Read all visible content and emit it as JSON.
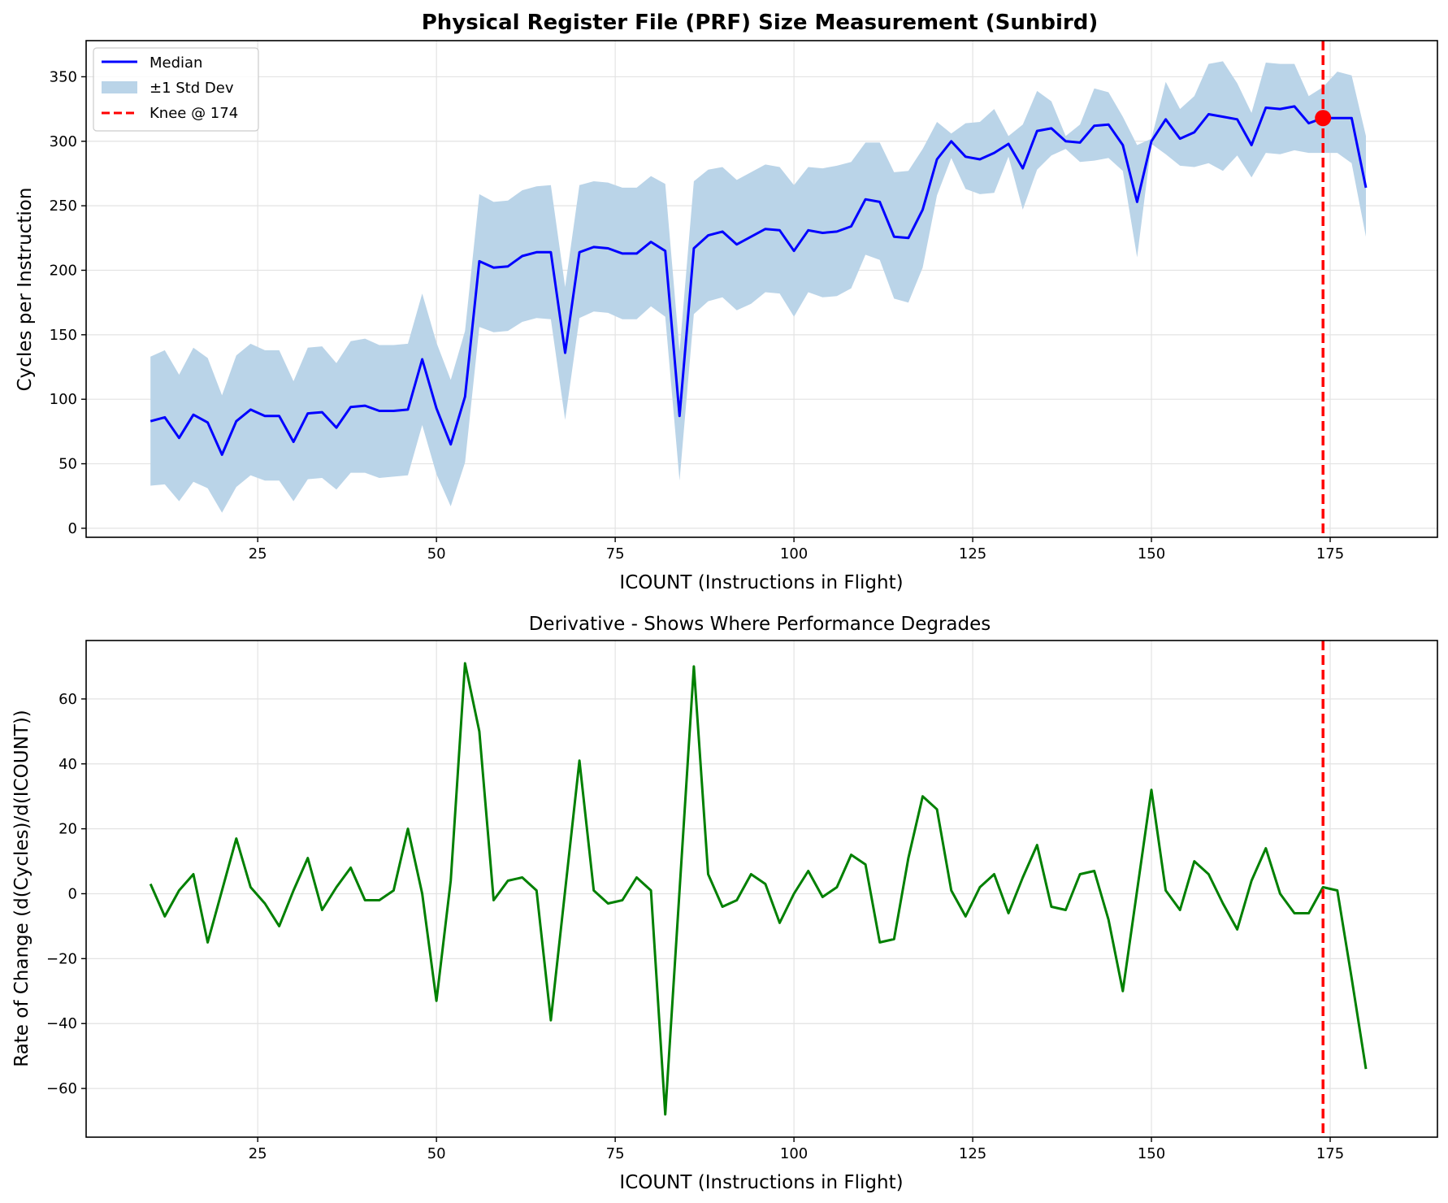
{
  "colors": {
    "median": "#0000ff",
    "band": "#bad4e8",
    "knee": "#ff0000",
    "derivative": "#008000"
  },
  "chart_data": [
    {
      "type": "line",
      "title": "Physical Register File (PRF) Size Measurement (Sunbird)",
      "xlabel": "ICOUNT (Instructions in Flight)",
      "ylabel": "Cycles per Instruction",
      "xlim": [
        1,
        190
      ],
      "ylim": [
        -7,
        378
      ],
      "xticks": [
        25,
        50,
        75,
        100,
        125,
        150,
        175
      ],
      "yticks": [
        0,
        50,
        100,
        150,
        200,
        250,
        300,
        350
      ],
      "grid": true,
      "legend_position": "top-left",
      "legend": [
        "Median",
        "±1 Std Dev",
        "Knee @ 174"
      ],
      "x": [
        10,
        12,
        14,
        16,
        18,
        20,
        22,
        24,
        26,
        28,
        30,
        32,
        34,
        36,
        38,
        40,
        42,
        44,
        46,
        48,
        50,
        52,
        54,
        56,
        58,
        60,
        62,
        64,
        66,
        68,
        70,
        72,
        74,
        76,
        78,
        80,
        82,
        84,
        86,
        88,
        90,
        92,
        94,
        96,
        98,
        100,
        102,
        104,
        106,
        108,
        110,
        112,
        114,
        116,
        118,
        120,
        122,
        124,
        126,
        128,
        130,
        132,
        134,
        136,
        138,
        140,
        142,
        144,
        146,
        148,
        150,
        152,
        154,
        156,
        158,
        160,
        162,
        164,
        166,
        168,
        170,
        172,
        174,
        176,
        178,
        180
      ],
      "series": [
        {
          "name": "Median",
          "values": [
            83,
            86,
            70,
            88,
            82,
            57,
            83,
            92,
            87,
            87,
            67,
            89,
            90,
            78,
            94,
            95,
            91,
            91,
            92,
            131,
            93,
            65,
            102,
            207,
            202,
            203,
            211,
            214,
            214,
            136,
            214,
            218,
            217,
            213,
            213,
            222,
            215,
            87,
            217,
            227,
            230,
            220,
            226,
            232,
            231,
            215,
            231,
            229,
            230,
            234,
            255,
            253,
            226,
            225,
            247,
            286,
            300,
            288,
            286,
            291,
            298,
            279,
            308,
            310,
            300,
            299,
            312,
            313,
            297,
            253,
            300,
            317,
            302,
            307,
            321,
            319,
            317,
            297,
            326,
            325,
            327,
            314,
            318,
            318,
            318,
            264
          ],
          "lower": [
            33,
            34,
            21,
            36,
            31,
            12,
            32,
            41,
            37,
            37,
            21,
            38,
            39,
            30,
            43,
            43,
            39,
            40,
            41,
            80,
            42,
            17,
            51,
            156,
            152,
            153,
            160,
            163,
            162,
            84,
            163,
            168,
            167,
            162,
            162,
            172,
            164,
            37,
            166,
            176,
            179,
            169,
            174,
            183,
            182,
            164,
            183,
            179,
            180,
            186,
            212,
            208,
            178,
            175,
            202,
            258,
            287,
            263,
            259,
            260,
            288,
            247,
            278,
            289,
            294,
            284,
            285,
            287,
            277,
            210,
            298,
            290,
            281,
            280,
            283,
            277,
            289,
            272,
            291,
            290,
            293,
            291,
            291,
            291,
            283,
            226
          ],
          "upper": [
            133,
            138,
            119,
            140,
            132,
            103,
            134,
            143,
            138,
            138,
            114,
            140,
            141,
            128,
            145,
            147,
            142,
            142,
            143,
            182,
            144,
            115,
            153,
            259,
            253,
            254,
            262,
            265,
            266,
            187,
            266,
            269,
            268,
            264,
            264,
            273,
            267,
            137,
            269,
            278,
            280,
            270,
            276,
            282,
            280,
            266,
            280,
            279,
            281,
            284,
            299,
            299,
            276,
            277,
            294,
            315,
            306,
            314,
            315,
            325,
            304,
            313,
            339,
            331,
            304,
            313,
            341,
            338,
            319,
            297,
            302,
            346,
            325,
            335,
            360,
            362,
            345,
            322,
            361,
            360,
            360,
            335,
            342,
            354,
            351,
            304
          ]
        }
      ],
      "knee": {
        "x": 174,
        "y": 318,
        "label": "Knee @ 174"
      }
    },
    {
      "type": "line",
      "title": "Derivative - Shows Where Performance Degrades",
      "xlabel": "ICOUNT (Instructions in Flight)",
      "ylabel": "Rate of Change (d(Cycles)/d(ICOUNT))",
      "xlim": [
        1,
        190
      ],
      "ylim": [
        -75,
        78
      ],
      "xticks": [
        25,
        50,
        75,
        100,
        125,
        150,
        175
      ],
      "yticks": [
        -60,
        -40,
        -20,
        0,
        20,
        40,
        60
      ],
      "grid": true,
      "x": [
        10,
        12,
        14,
        16,
        18,
        20,
        22,
        24,
        26,
        28,
        30,
        32,
        34,
        36,
        38,
        40,
        42,
        44,
        46,
        48,
        50,
        52,
        54,
        56,
        58,
        60,
        62,
        64,
        66,
        68,
        70,
        72,
        74,
        76,
        78,
        80,
        82,
        84,
        86,
        88,
        90,
        92,
        94,
        96,
        98,
        100,
        102,
        104,
        106,
        108,
        110,
        112,
        114,
        116,
        118,
        120,
        122,
        124,
        126,
        128,
        130,
        132,
        134,
        136,
        138,
        140,
        142,
        144,
        146,
        148,
        150,
        152,
        154,
        156,
        158,
        160,
        162,
        164,
        166,
        168,
        170,
        172,
        174,
        176,
        178,
        180
      ],
      "series": [
        {
          "values": [
            3,
            -7,
            1,
            6,
            -15,
            1,
            17,
            2,
            -3,
            -10,
            1,
            11,
            -5,
            2,
            8,
            -2,
            -2,
            1,
            20,
            0,
            -33,
            4,
            71,
            50,
            -2,
            4,
            5,
            1,
            -39,
            1,
            41,
            1,
            -3,
            -2,
            5,
            1,
            -68,
            1,
            70,
            6,
            -4,
            -2,
            6,
            3,
            -9,
            0,
            7,
            -1,
            2,
            12,
            9,
            -15,
            -14,
            11,
            30,
            26,
            1,
            -7,
            2,
            6,
            -6,
            5,
            15,
            -4,
            -5,
            6,
            7,
            -8,
            -30,
            1,
            32,
            1,
            -5,
            10,
            6,
            -3,
            -11,
            4,
            14,
            0,
            -6,
            -6,
            2,
            1,
            -26,
            -54
          ]
        }
      ],
      "knee": {
        "x": 174
      }
    }
  ]
}
